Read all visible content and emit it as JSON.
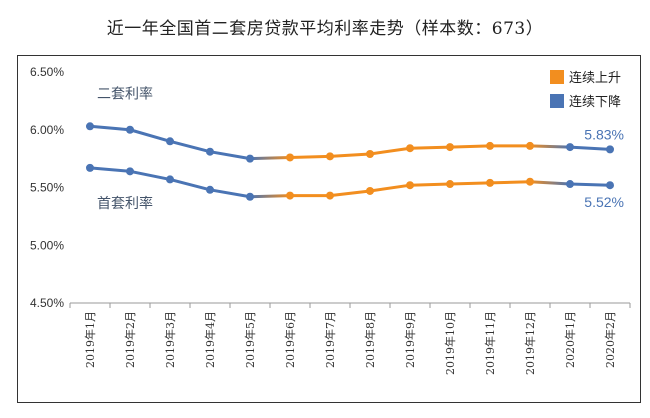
{
  "title": "近一年全国首二套房贷款平均利率走势（样本数：673）",
  "colors": {
    "up": "#F28E1F",
    "down": "#4A74B4",
    "label": "#44546A",
    "axis": "#333333"
  },
  "chart_data": {
    "type": "line",
    "categories": [
      "2019年1月",
      "2019年2月",
      "2019年3月",
      "2019年4月",
      "2019年5月",
      "2019年6月",
      "2019年7月",
      "2019年8月",
      "2019年9月",
      "2019年10月",
      "2019年11月",
      "2019年12月",
      "2020年1月",
      "2020年2月"
    ],
    "ylim": [
      4.5,
      6.5
    ],
    "yticks": [
      "6.50%",
      "6.00%",
      "5.50%",
      "5.00%",
      "4.50%"
    ],
    "yticks_values": [
      6.5,
      6.0,
      5.5,
      5.0,
      4.5
    ],
    "series": [
      {
        "name": "二套利率",
        "values": [
          6.03,
          6.0,
          5.9,
          5.81,
          5.75,
          5.76,
          5.77,
          5.79,
          5.84,
          5.85,
          5.86,
          5.86,
          5.85,
          5.83
        ],
        "end_label": "5.83%"
      },
      {
        "name": "首套利率",
        "values": [
          5.67,
          5.64,
          5.57,
          5.48,
          5.42,
          5.43,
          5.43,
          5.47,
          5.52,
          5.53,
          5.54,
          5.55,
          5.53,
          5.52
        ],
        "end_label": "5.52%"
      }
    ],
    "legend": [
      {
        "label": "连续上升",
        "color": "#F28E1F"
      },
      {
        "label": "连续下降",
        "color": "#4A74B4"
      }
    ],
    "legend_position": "top-right",
    "segment_colors": [
      "down",
      "down",
      "down",
      "down",
      "up",
      "up",
      "up",
      "up",
      "up",
      "up",
      "up",
      "down",
      "down"
    ]
  }
}
